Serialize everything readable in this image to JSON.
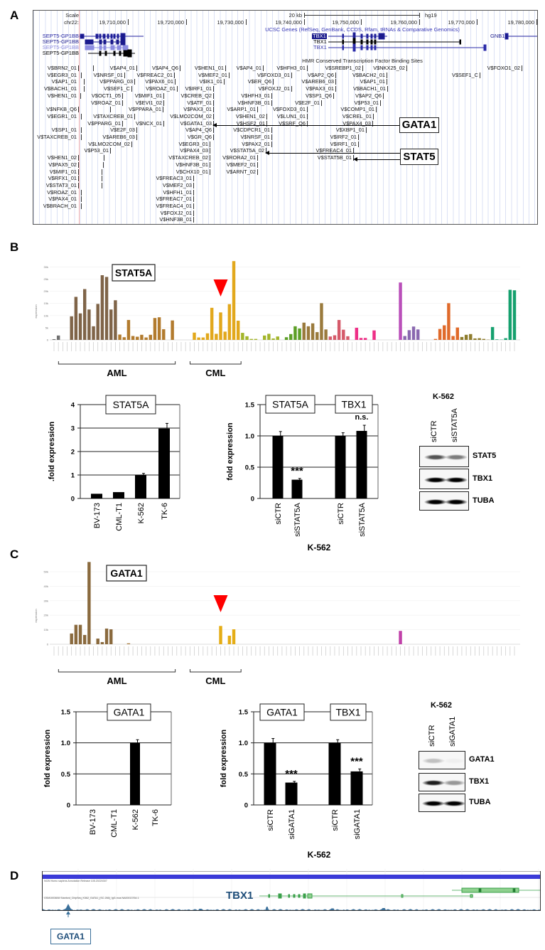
{
  "panel_labels": {
    "a": "A",
    "b": "B",
    "c": "C",
    "d": "D"
  },
  "panel_a": {
    "scale_label": "Scale",
    "chrom_label": "chr22:",
    "scale_bar_label": "20 kb",
    "assembly": "hg19",
    "positions": [
      "19,710,000",
      "19,720,000",
      "19,730,000",
      "19,740,000",
      "19,750,000",
      "19,760,000",
      "19,770,000",
      "19,780,000"
    ],
    "genes_title": "UCSC Genes (RefSeq, GenBank, CCDS, Rfam, tRNAs & Comparative Genomics)",
    "genes": [
      "SEPT5-GP1BB",
      "SEPT5-GP1BB",
      "SEPT5-GP1BB",
      "SEPT5-GP1BB",
      "TBX1",
      "TBX1",
      "TBX1",
      "GNB1L"
    ],
    "tfbs_title": "HMR Conserved Transcription Factor Binding Sites",
    "tf_rows": [
      [
        "V$BRN2_01",
        "V$AP4_01",
        "V$AP4_Q6",
        "V$HEN1_01",
        "V$AP4_01",
        "V$HFH3_01",
        "V$SREBP1_02",
        "V$NKX25_02",
        "V$FOXO1_02"
      ],
      [
        "V$EGR3_01",
        "V$NRSF_01",
        "V$FREAC2_01",
        "V$MEF2_01",
        "V$FOXD3_01",
        "V$AP2_Q6",
        "V$BACH2_01",
        "V$SEF1_C"
      ],
      [
        "V$AP1_01",
        "V$PPARG_03",
        "V$PAX6_01",
        "V$IK1_01",
        "V$ER_Q6",
        "V$AREB6_03",
        "V$AP1_01"
      ],
      [
        "V$BACH1_01",
        "V$SEF1_C",
        "V$ROAZ_01",
        "V$IRF1_01",
        "V$FOXJ2_01",
        "V$PAX3_01",
        "V$BACH1_01"
      ],
      [
        "V$HEN1_01",
        "V$OCT1_05",
        "V$MIF1_01",
        "V$CREB_Q2",
        "V$HFH3_01",
        "V$SP1_Q6",
        "V$AP2_Q6"
      ],
      [
        "V$ROAZ_01",
        "V$EVI1_02",
        "V$ATF_01",
        "V$HNF3B_01",
        "V$E2F_01",
        "V$P53_01"
      ],
      [
        "V$NFKB_Q6",
        "V$PPARA_01",
        "V$PAX3_01",
        "V$ARP1_01",
        "V$FOXD3_01",
        "V$COMP1_01"
      ],
      [
        "V$EGR1_01",
        "V$TAXCREB_01",
        "V$LMO2COM_02",
        "V$HEN1_02",
        "V$LUN1_01",
        "V$CREL_01"
      ],
      [
        "V$PPARG_01",
        "V$NCX_01",
        "V$GATA1_03",
        "V$HSF2_01",
        "V$SRF_Q6",
        "V$PAX4_03"
      ],
      [
        "V$SP1_01",
        "V$E2F_03",
        "V$AP4_Q6",
        "V$CDPCR1_01",
        "V$XBP1_01"
      ],
      [
        "V$TAXCREB_01",
        "V$AREB6_03",
        "V$GR_Q6",
        "V$NRSF_01",
        "V$IRF2_01"
      ],
      [
        "V$LMO2COM_02",
        "V$EGR3_01",
        "V$PAX2_01",
        "V$IRF1_01"
      ],
      [
        "V$P53_01",
        "V$PAX4_03",
        "V$STAT5A_02",
        "V$FREAC4_01"
      ],
      [
        "V$HEN1_02",
        "V$TAXCREB_02",
        "V$RORA2_01",
        "V$STAT5B_01"
      ],
      [
        "V$PAX5_02",
        "V$HNF3B_01",
        "V$MEF2_01"
      ],
      [
        "V$MIF1_01",
        "V$CHX10_01",
        "V$ARNT_02"
      ],
      [
        "V$RFX1_01",
        "V$FREAC3_01"
      ],
      [
        "V$STAT3_01",
        "V$MEF2_03"
      ],
      [
        "V$ROAZ_01",
        "V$HFH1_01"
      ],
      [
        "V$PAX4_01",
        "V$FREAC7_01"
      ],
      [
        "V$BRACH_01",
        "V$FREAC4_01"
      ],
      [
        "V$FOXJ2_01"
      ],
      [
        "V$HNF3B_01"
      ]
    ],
    "callouts": {
      "gata1": "GATA1",
      "stat5": "STAT5"
    }
  },
  "chart_data": [
    {
      "panel": "B",
      "type": "bar",
      "title": "STAT5A",
      "ylabel": "expression",
      "ylim": [
        0,
        35
      ],
      "y_ticks": [
        0,
        5,
        10,
        15,
        20,
        25,
        30
      ],
      "y_tick_labels": [
        "0",
        "5k",
        "10k",
        "15k",
        "20k",
        "25k",
        "30k"
      ],
      "values": [
        0.3,
        1.8,
        0,
        0,
        9.7,
        17.7,
        10.9,
        20.9,
        12.5,
        5.6,
        14.8,
        26.6,
        25.9,
        12.5,
        16.3,
        2.2,
        1.1,
        8.2,
        1.6,
        1.3,
        2.1,
        1.0,
        2.1,
        9.0,
        9.3,
        4.4,
        0,
        8.0,
        0,
        0,
        0,
        0,
        3.0,
        1.0,
        1.0,
        2.7,
        13.2,
        2.5,
        11.3,
        3.4,
        14.7,
        32.4,
        7.9,
        2.9,
        1.5,
        0.4,
        0.4,
        0,
        1.8,
        2.5,
        0.6,
        1.4,
        0,
        1.1,
        2.4,
        5.6,
        4.7,
        7.1,
        5.6,
        6.8,
        3.2,
        15.1,
        4.3,
        1.4,
        1.9,
        8.2,
        4.2,
        1.5,
        0,
        5.0,
        0.8,
        0.8,
        0,
        3.9,
        0,
        0,
        0,
        0,
        0,
        23.6,
        1.6,
        4.0,
        5.5,
        4.3,
        0.1,
        0,
        0,
        0.4,
        4.5,
        6.0,
        15.1,
        1.6,
        5.1,
        1.2,
        2.1,
        2.4,
        0.6,
        0.7,
        0.4,
        0.1,
        5.3,
        0.2,
        0.1,
        0.7,
        20.6,
        20.4
      ],
      "color_groups": [
        {
          "count": 2,
          "color": "#707070"
        },
        {
          "count": 13,
          "color": "#7f6448"
        },
        {
          "count": 13,
          "color": "#b27b2e"
        },
        {
          "count": 4,
          "color": "#c9962a"
        },
        {
          "count": 11,
          "color": "#e2a81c"
        },
        {
          "count": 10,
          "color": "#a3b52a"
        },
        {
          "count": 4,
          "color": "#5c9f26"
        },
        {
          "count": 6,
          "color": "#9a7a3c"
        },
        {
          "count": 5,
          "color": "#d55a6a"
        },
        {
          "count": 6,
          "color": "#ee2f86"
        },
        {
          "count": 5,
          "color": "#cccccc"
        },
        {
          "count": 1,
          "color": "#b94fb9"
        },
        {
          "count": 4,
          "color": "#8a68b0"
        },
        {
          "count": 3,
          "color": "#cccccc"
        },
        {
          "count": 6,
          "color": "#e06a2a"
        },
        {
          "count": 7,
          "color": "#8e7c2c"
        },
        {
          "count": 6,
          "color": "#15a06e"
        }
      ],
      "marker_index": 38,
      "marker_color": "#ff0000",
      "groups": [
        {
          "label": "AML",
          "from": 2,
          "to": 27
        },
        {
          "label": "CML",
          "from": 32,
          "to": 42
        }
      ]
    },
    {
      "panel": "B",
      "type": "bar",
      "title": "STAT5A",
      "ylabel": ".fold expression",
      "categories": [
        "BV-173",
        "CML-T1",
        "K-562",
        "TK-6"
      ],
      "values": [
        0.2,
        0.27,
        1.0,
        2.98
      ],
      "errors": [
        0,
        0,
        0.07,
        0.22
      ],
      "ylim": [
        0,
        4
      ],
      "y_ticks": [
        0,
        1,
        2,
        3,
        4
      ],
      "y_tick_labels": [
        "0",
        "1",
        "2",
        "3",
        "4"
      ]
    },
    {
      "panel": "B",
      "type": "bar",
      "titles": [
        "STAT5A",
        "TBX1"
      ],
      "ylabel": "fold expression",
      "xlabel": "K-562",
      "categories": [
        "siCTR",
        "siSTAT5A",
        "siCTR",
        "siSTAT5A"
      ],
      "values": [
        1.0,
        0.3,
        1.0,
        1.08
      ],
      "errors": [
        0.07,
        0.02,
        0.05,
        0.09
      ],
      "significance": [
        null,
        "***",
        null,
        "n.s."
      ],
      "ylim": [
        0,
        1.5
      ],
      "y_ticks": [
        0,
        0.5,
        1.0,
        1.5
      ],
      "y_tick_labels": [
        "0",
        "0.5",
        "1.0",
        "1.5"
      ]
    },
    {
      "panel": "C",
      "type": "bar",
      "title": "GATA1",
      "ylabel": "expression",
      "ylim": [
        0,
        60
      ],
      "y_ticks": [
        0,
        10,
        20,
        30,
        40,
        50
      ],
      "y_tick_labels": [
        "0",
        "10k",
        "20k",
        "30k",
        "40k",
        "50k"
      ],
      "values": [
        0,
        0,
        0,
        0,
        7.4,
        13.4,
        13.4,
        6.4,
        56.7,
        0,
        3.9,
        1.5,
        10.8,
        10.3,
        0,
        0,
        0,
        0.6,
        0,
        0,
        0,
        0,
        0,
        0,
        0,
        0,
        0,
        0,
        0,
        0,
        0,
        0,
        0,
        0,
        0,
        0,
        0,
        0,
        12.6,
        0,
        5.9,
        10.3,
        0,
        0,
        0,
        0,
        0,
        0,
        0,
        0,
        0,
        0,
        0,
        0,
        0,
        0,
        0,
        0,
        0,
        0,
        0,
        0,
        0,
        0,
        0,
        0,
        0,
        0,
        0,
        0,
        0,
        0,
        0,
        0,
        0,
        0,
        0,
        0,
        0,
        9.2,
        0,
        0,
        0,
        0,
        0,
        0,
        0,
        0,
        0,
        0,
        0,
        0,
        0,
        0,
        0,
        0,
        0,
        0,
        0,
        0,
        0,
        0,
        0,
        0,
        0,
        0
      ],
      "color_groups": [
        {
          "count": 2,
          "color": "#707070"
        },
        {
          "count": 13,
          "color": "#8a6a3e"
        },
        {
          "count": 13,
          "color": "#a57838"
        },
        {
          "count": 4,
          "color": "#c9962a"
        },
        {
          "count": 11,
          "color": "#e5ad16"
        },
        {
          "count": 10,
          "color": "#a3b52a"
        },
        {
          "count": 4,
          "color": "#5c9f26"
        },
        {
          "count": 6,
          "color": "#9a7a3c"
        },
        {
          "count": 5,
          "color": "#d55a6a"
        },
        {
          "count": 6,
          "color": "#ee2f86"
        },
        {
          "count": 5,
          "color": "#cccccc"
        },
        {
          "count": 1,
          "color": "#c040a8"
        },
        {
          "count": 4,
          "color": "#8a68b0"
        },
        {
          "count": 3,
          "color": "#cccccc"
        },
        {
          "count": 6,
          "color": "#e06a2a"
        },
        {
          "count": 7,
          "color": "#8e7c2c"
        },
        {
          "count": 6,
          "color": "#15a06e"
        }
      ],
      "marker_index": 38,
      "marker_color": "#ff0000",
      "groups": [
        {
          "label": "AML",
          "from": 2,
          "to": 27
        },
        {
          "label": "CML",
          "from": 32,
          "to": 42
        }
      ]
    },
    {
      "panel": "C",
      "type": "bar",
      "title": "GATA1",
      "ylabel": "fold expression",
      "categories": [
        "BV-173",
        "CML-T1",
        "K-562",
        "TK-6"
      ],
      "values": [
        0,
        0,
        1.0,
        0
      ],
      "errors": [
        0,
        0,
        0.05,
        0
      ],
      "ylim": [
        0,
        1.5
      ],
      "y_ticks": [
        0,
        0.5,
        1.0,
        1.5
      ],
      "y_tick_labels": [
        "0",
        "0.5",
        "1.0",
        "1.5"
      ]
    },
    {
      "panel": "C",
      "type": "bar",
      "titles": [
        "GATA1",
        "TBX1"
      ],
      "ylabel": "fold expression",
      "xlabel": "K-562",
      "categories": [
        "siCTR",
        "siGATA1",
        "siCTR",
        "siGATA1"
      ],
      "values": [
        1.0,
        0.36,
        1.0,
        0.54
      ],
      "errors": [
        0.07,
        0.02,
        0.05,
        0.04
      ],
      "significance": [
        null,
        "***",
        null,
        "***"
      ],
      "ylim": [
        0,
        1.5
      ],
      "y_ticks": [
        0,
        0.5,
        1.0,
        1.5
      ],
      "y_tick_labels": [
        "0",
        "0.5",
        "1.0",
        "1.5"
      ]
    }
  ],
  "blots": [
    {
      "header": "K-562",
      "lanes": [
        "siCTR",
        "siSTAT5A"
      ],
      "rows": [
        {
          "label": "STAT5",
          "intensity": [
            0.6,
            0.45
          ]
        },
        {
          "label": "TBX1",
          "intensity": [
            1.0,
            1.0
          ]
        },
        {
          "label": "TUBA",
          "intensity": [
            0.95,
            0.95
          ]
        }
      ]
    },
    {
      "header": "K-562",
      "lanes": [
        "siCTR",
        "siGATA1"
      ],
      "rows": [
        {
          "label": "GATA1",
          "intensity": [
            0.2,
            0.03
          ]
        },
        {
          "label": "TBX1",
          "intensity": [
            0.8,
            0.35
          ]
        },
        {
          "label": "TUBA",
          "intensity": [
            1.0,
            1.0
          ]
        }
      ]
    }
  ],
  "panel_d": {
    "annotation_track": "NCBI Homo sapiens Annotation Release 105.20220307",
    "chip_track": "GSM1003608 Stanford_ChipSeq_K562_GATA1_(SC-266)_IgG-mus NA00013764.1",
    "gene_label": "TBX1",
    "peak_label": "GATA1",
    "accent_color": "#1f4e7a"
  }
}
